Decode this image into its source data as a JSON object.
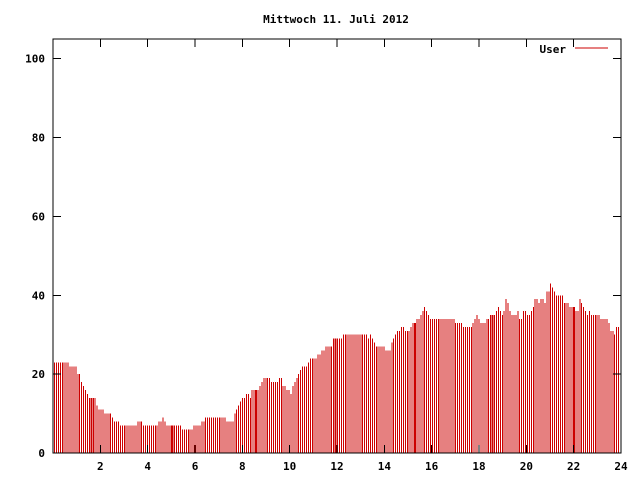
{
  "chart_data": {
    "type": "bar",
    "title": "Mittwoch 11. Juli 2012",
    "xlabel": "",
    "ylabel": "",
    "xlim": [
      0,
      24
    ],
    "ylim": [
      0,
      105
    ],
    "xticks": [
      2,
      4,
      6,
      8,
      10,
      12,
      14,
      16,
      18,
      20,
      22,
      24
    ],
    "yticks": [
      0,
      20,
      40,
      60,
      80,
      100
    ],
    "grid": false,
    "legend_position": "top-right",
    "series": [
      {
        "name": "User",
        "color": "#cc0000",
        "bar_spacing_hours": 0.0833,
        "values": [
          23,
          23,
          23,
          23,
          23,
          23,
          23,
          23,
          22,
          22,
          22,
          22,
          20,
          20,
          18,
          17,
          16,
          15,
          14,
          14,
          14,
          14,
          12,
          11,
          11,
          11,
          10,
          10,
          10,
          10,
          9,
          8,
          8,
          8,
          7,
          7,
          7,
          7,
          7,
          7,
          7,
          7,
          7,
          8,
          8,
          8,
          7,
          7,
          7,
          7,
          7,
          7,
          7,
          7,
          8,
          8,
          9,
          8,
          7,
          7,
          7,
          7,
          7,
          7,
          7,
          7,
          6,
          6,
          6,
          6,
          6,
          6,
          7,
          7,
          7,
          7,
          8,
          8,
          9,
          9,
          9,
          9,
          9,
          9,
          9,
          9,
          9,
          9,
          9,
          8,
          8,
          8,
          8,
          10,
          11,
          12,
          13,
          14,
          14,
          15,
          15,
          14,
          16,
          16,
          16,
          16,
          17,
          18,
          19,
          19,
          19,
          19,
          18,
          18,
          18,
          18,
          19,
          19,
          17,
          17,
          16,
          16,
          15,
          17,
          18,
          19,
          20,
          21,
          22,
          22,
          22,
          23,
          24,
          24,
          24,
          24,
          25,
          25,
          26,
          26,
          27,
          27,
          27,
          27,
          29,
          29,
          29,
          29,
          29,
          30,
          30,
          30,
          30,
          30,
          30,
          30,
          30,
          30,
          30,
          30,
          30,
          30,
          29,
          30,
          29,
          28,
          27,
          27,
          27,
          27,
          27,
          26,
          26,
          26,
          28,
          29,
          30,
          31,
          31,
          32,
          32,
          31,
          31,
          31,
          32,
          33,
          33,
          34,
          34,
          35,
          36,
          37,
          36,
          35,
          34,
          34,
          34,
          34,
          34,
          34,
          34,
          34,
          34,
          34,
          34,
          34,
          34,
          33,
          33,
          33,
          33,
          32,
          32,
          32,
          32,
          32,
          33,
          34,
          35,
          34,
          33,
          33,
          33,
          34,
          34,
          35,
          35,
          35,
          36,
          37,
          36,
          35,
          36,
          39,
          38,
          36,
          35,
          35,
          35,
          36,
          34,
          34,
          36,
          36,
          35,
          35,
          36,
          37,
          39,
          39,
          38,
          39,
          39,
          38,
          41,
          41,
          43,
          42,
          41,
          40,
          40,
          40,
          40,
          38,
          38,
          38,
          37,
          37,
          37,
          36,
          36,
          39,
          38,
          37,
          36,
          35,
          36,
          35,
          35,
          35,
          35,
          35,
          34,
          34,
          34,
          34,
          33,
          31,
          31,
          30,
          32,
          32
        ],
        "highlight_indices": [
          19,
          61,
          104,
          145,
          186,
          226,
          268,
          315
        ]
      }
    ]
  }
}
